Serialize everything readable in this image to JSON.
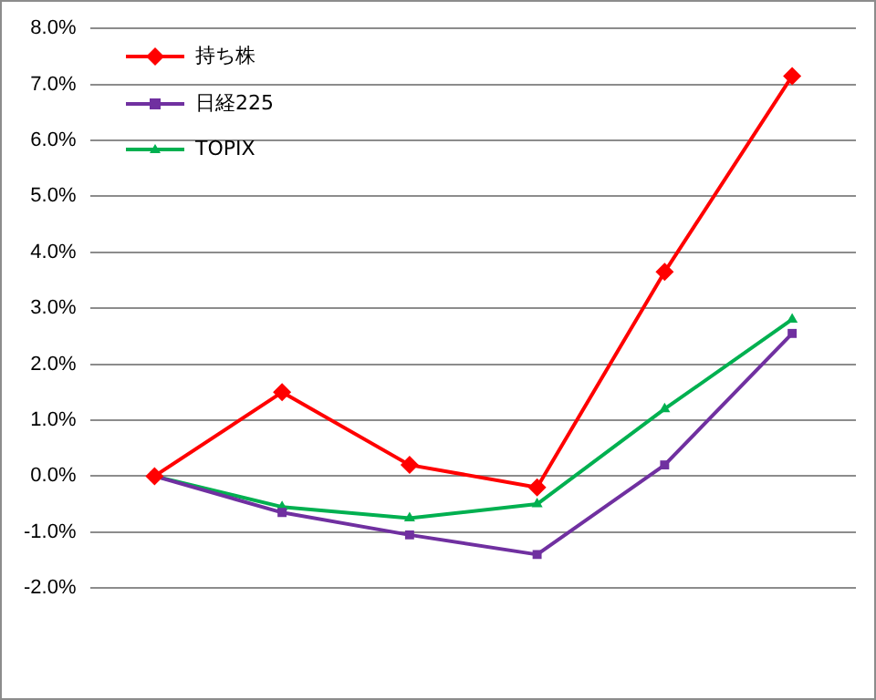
{
  "chart_data": {
    "type": "line",
    "categories": [
      null,
      null,
      null,
      null,
      null,
      null
    ],
    "series": [
      {
        "name": "持ち株",
        "color": "#ff0000",
        "marker": "diamond",
        "values": [
          0,
          1.5,
          0.2,
          -0.2,
          3.65,
          7.15
        ]
      },
      {
        "name": "日経225",
        "color": "#7030a0",
        "marker": "square",
        "values": [
          0,
          -0.65,
          -1.05,
          -1.4,
          0.2,
          2.55
        ]
      },
      {
        "name": "TOPIX",
        "color": "#00b050",
        "marker": "triangle",
        "values": [
          0,
          -0.55,
          -0.75,
          -0.5,
          1.2,
          2.8
        ]
      }
    ],
    "ylim": [
      -2,
      8
    ],
    "yticks": [
      {
        "value": -2,
        "label": "-2.0%"
      },
      {
        "value": -1,
        "label": "-1.0%"
      },
      {
        "value": 0,
        "label": "0.0%"
      },
      {
        "value": 1,
        "label": "1.0%"
      },
      {
        "value": 2,
        "label": "2.0%"
      },
      {
        "value": 3,
        "label": "3.0%"
      },
      {
        "value": 4,
        "label": "4.0%"
      },
      {
        "value": 5,
        "label": "5.0%"
      },
      {
        "value": 6,
        "label": "6.0%"
      },
      {
        "value": 7,
        "label": "7.0%"
      },
      {
        "value": 8,
        "label": "8.0%"
      }
    ],
    "grid": "y",
    "legend": "top left",
    "line_style": "solid"
  }
}
